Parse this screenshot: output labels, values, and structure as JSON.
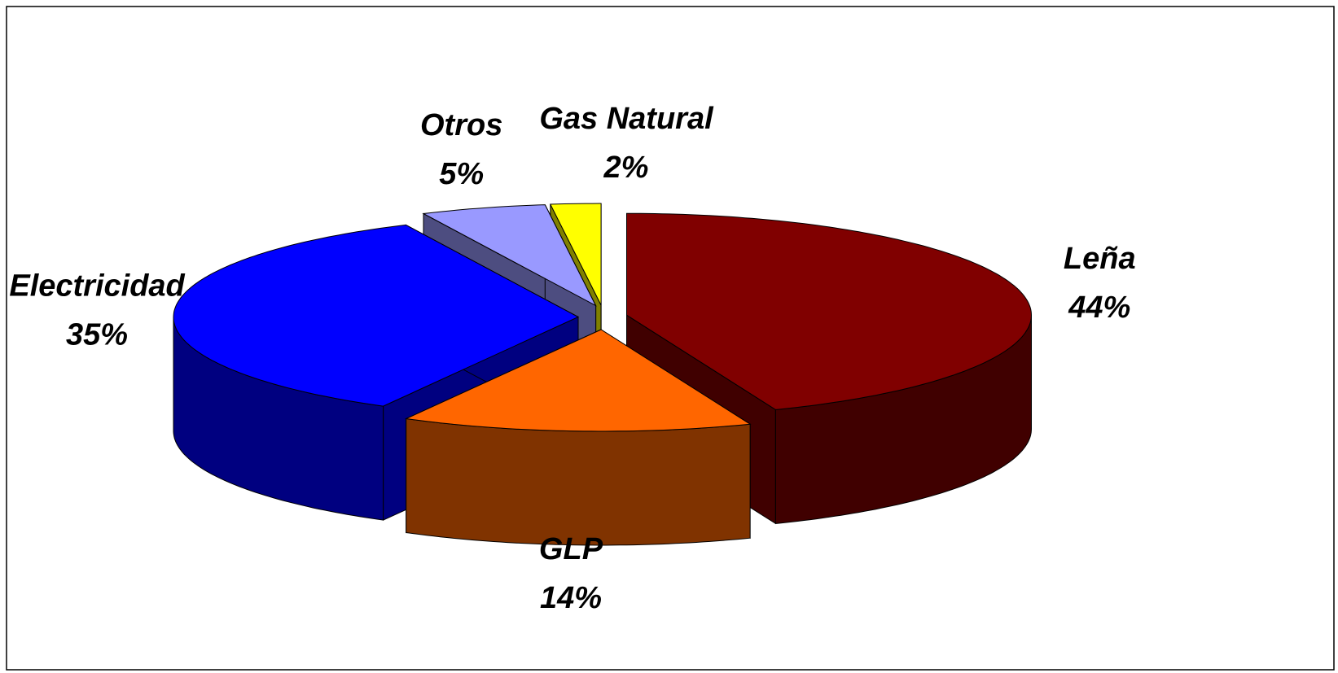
{
  "chart_data": {
    "type": "pie",
    "categories": [
      "Leña",
      "GLP",
      "Electricidad",
      "Otros",
      "Gas Natural"
    ],
    "values": [
      44,
      14,
      35,
      5,
      2
    ],
    "value_labels": [
      "44%",
      "14%",
      "35%",
      "5%",
      "2%"
    ],
    "colors": [
      "#800000",
      "#ff6600",
      "#0000ff",
      "#9999ff",
      "#ffff00"
    ]
  }
}
